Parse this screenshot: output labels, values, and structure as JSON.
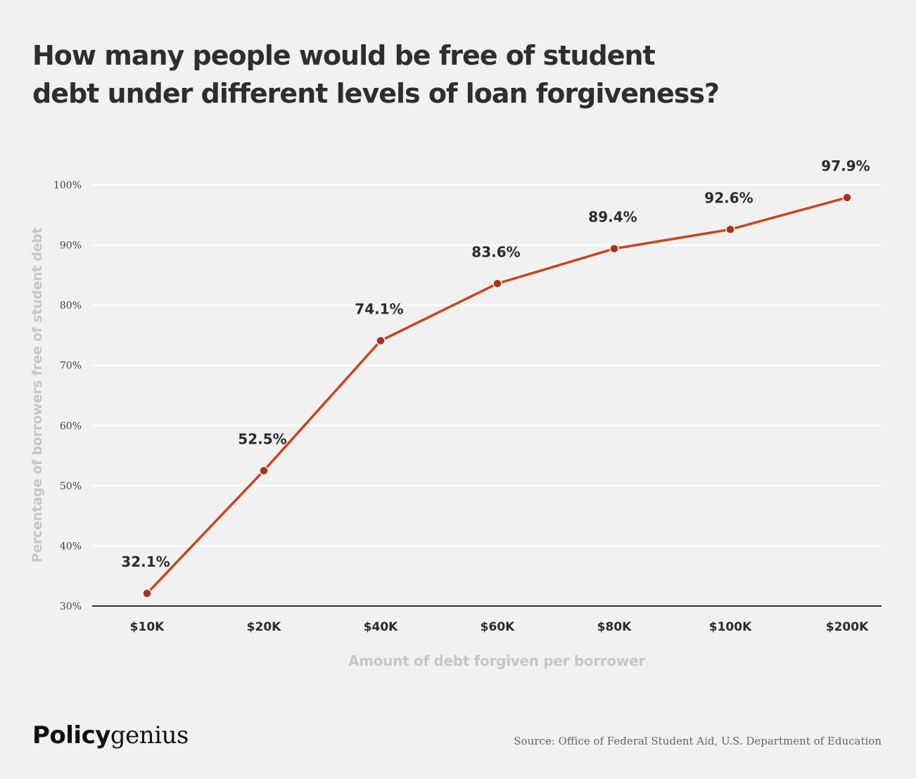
{
  "title_lines": [
    "How many people would be free of student",
    "debt under different levels of loan forgiveness?"
  ],
  "chart_data": {
    "type": "line",
    "categories": [
      "$10K",
      "$20K",
      "$40K",
      "$60K",
      "$80K",
      "$100K",
      "$200K"
    ],
    "values": [
      32.1,
      52.5,
      74.1,
      83.6,
      89.4,
      92.6,
      97.9
    ],
    "data_labels": [
      "32.1%",
      "52.5%",
      "74.1%",
      "83.6%",
      "89.4%",
      "92.6%",
      "97.9%"
    ],
    "y_ticks": [
      30,
      40,
      50,
      60,
      70,
      80,
      90,
      100
    ],
    "y_tick_labels": [
      "30%",
      "40%",
      "50%",
      "60%",
      "70%",
      "80%",
      "90%",
      "100%"
    ],
    "ylim": [
      30,
      100
    ],
    "xlabel": "Amount of debt forgiven per borrower",
    "ylabel": "Percentage of borrowers free of student debt",
    "grid": true,
    "line_color": "#c9451c",
    "marker_color": "#a8321a"
  },
  "footer": {
    "logo_bold": "Policy",
    "logo_regular": "genius",
    "source": "Source: Office of Federal Student Aid, U.S. Department of Education"
  }
}
